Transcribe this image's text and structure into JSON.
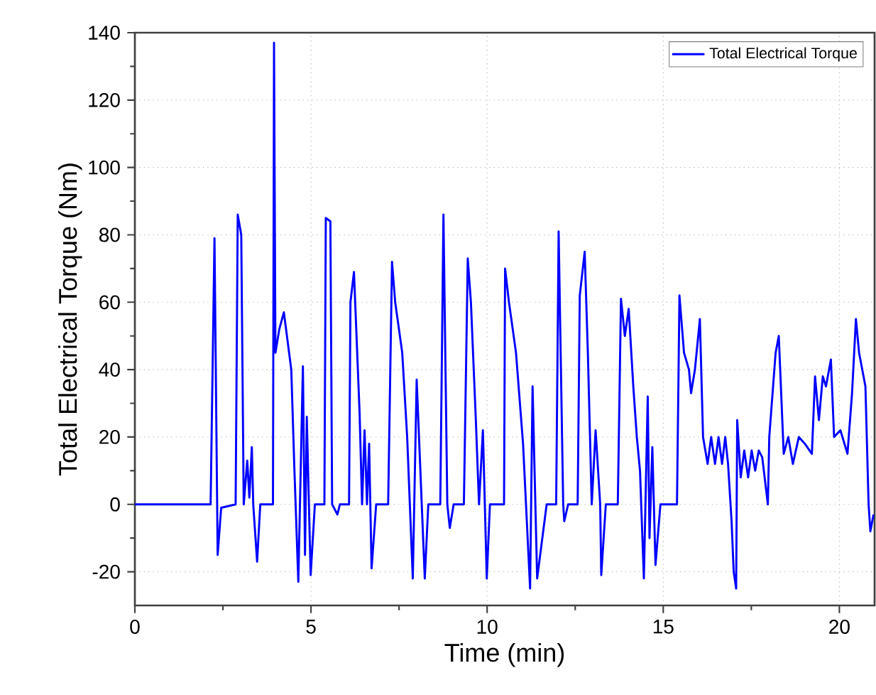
{
  "chart_data": {
    "type": "line",
    "xlabel": "Time (min)",
    "ylabel": "Total Electrical Torque (Nm)",
    "xlim": [
      0,
      21
    ],
    "ylim": [
      -30,
      140
    ],
    "xticks": [
      0,
      5,
      10,
      15,
      20
    ],
    "yticks": [
      -20,
      0,
      20,
      40,
      60,
      80,
      100,
      120,
      140
    ],
    "grid": true,
    "legend": "top right",
    "line_style": "solid",
    "marker": "none",
    "series": [
      {
        "name": "Total Electrical Torque",
        "color": "#0000ff",
        "x": [
          0,
          2.15,
          2.26,
          2.35,
          2.45,
          2.86,
          2.92,
          3.02,
          3.09,
          3.19,
          3.25,
          3.32,
          3.36,
          3.47,
          3.56,
          3.92,
          3.95,
          3.99,
          4.1,
          4.23,
          4.44,
          4.53,
          4.64,
          4.77,
          4.83,
          4.88,
          4.99,
          5.11,
          5.38,
          5.42,
          5.55,
          5.6,
          5.75,
          5.82,
          6.08,
          6.12,
          6.22,
          6.38,
          6.45,
          6.52,
          6.59,
          6.65,
          6.72,
          6.85,
          7.19,
          7.3,
          7.39,
          7.59,
          7.73,
          7.89,
          8.0,
          8.23,
          8.33,
          8.67,
          8.76,
          8.87,
          8.94,
          9.05,
          9.34,
          9.45,
          9.54,
          9.68,
          9.77,
          9.88,
          9.99,
          10.08,
          10.48,
          10.51,
          10.62,
          10.82,
          11.02,
          11.22,
          11.29,
          11.42,
          11.69,
          11.96,
          12.03,
          12.16,
          12.19,
          12.3,
          12.57,
          12.63,
          12.77,
          12.86,
          12.97,
          13.08,
          13.21,
          13.24,
          13.37,
          13.71,
          13.8,
          13.91,
          14.02,
          14.15,
          14.25,
          14.34,
          14.45,
          14.56,
          14.61,
          14.69,
          14.78,
          14.92,
          15.39,
          15.46,
          15.59,
          15.73,
          15.79,
          15.9,
          16.04,
          16.13,
          16.26,
          16.36,
          16.47,
          16.57,
          16.67,
          16.76,
          16.84,
          16.94,
          17.0,
          17.07,
          17.1,
          17.2,
          17.3,
          17.41,
          17.51,
          17.61,
          17.71,
          17.81,
          17.97,
          18.01,
          18.19,
          18.28,
          18.42,
          18.55,
          18.68,
          18.85,
          19.02,
          19.22,
          19.31,
          19.42,
          19.53,
          19.62,
          19.76,
          19.85,
          20.03,
          20.23,
          20.36,
          20.47,
          20.56,
          20.74,
          20.83,
          20.88,
          20.97
        ],
        "values": [
          0,
          0,
          79,
          -15,
          -1,
          0,
          86,
          80,
          0,
          13,
          2,
          17,
          0,
          -17,
          0,
          0,
          137,
          45,
          52,
          57,
          40,
          10,
          -23,
          41,
          -15,
          26,
          -21,
          0,
          0,
          85,
          84,
          0,
          -3,
          0,
          0,
          60,
          69,
          27,
          0,
          22,
          0,
          18,
          -19,
          0,
          0,
          72,
          60,
          45,
          20,
          -22,
          37,
          -22,
          0,
          0,
          86,
          0,
          -7,
          0,
          0,
          73,
          60,
          25,
          0,
          22,
          -22,
          0,
          0,
          70,
          60,
          45,
          18,
          -25,
          35,
          -22,
          0,
          0,
          81,
          0,
          -5,
          0,
          0,
          62,
          75,
          45,
          0,
          22,
          0,
          -21,
          0,
          0,
          61,
          50,
          58,
          35,
          20,
          10,
          -22,
          32,
          -10,
          17,
          -18,
          0,
          0,
          62,
          45,
          40,
          33,
          40,
          55,
          20,
          12,
          20,
          12,
          20,
          12,
          20,
          12,
          -5,
          -20,
          -25,
          25,
          8,
          16,
          8,
          16,
          10,
          16,
          14,
          0,
          20,
          45,
          50,
          15,
          20,
          12,
          20,
          18,
          15,
          38,
          25,
          38,
          35,
          43,
          20,
          22,
          15,
          33,
          55,
          45,
          35,
          0,
          -8,
          -3
        ]
      }
    ]
  }
}
